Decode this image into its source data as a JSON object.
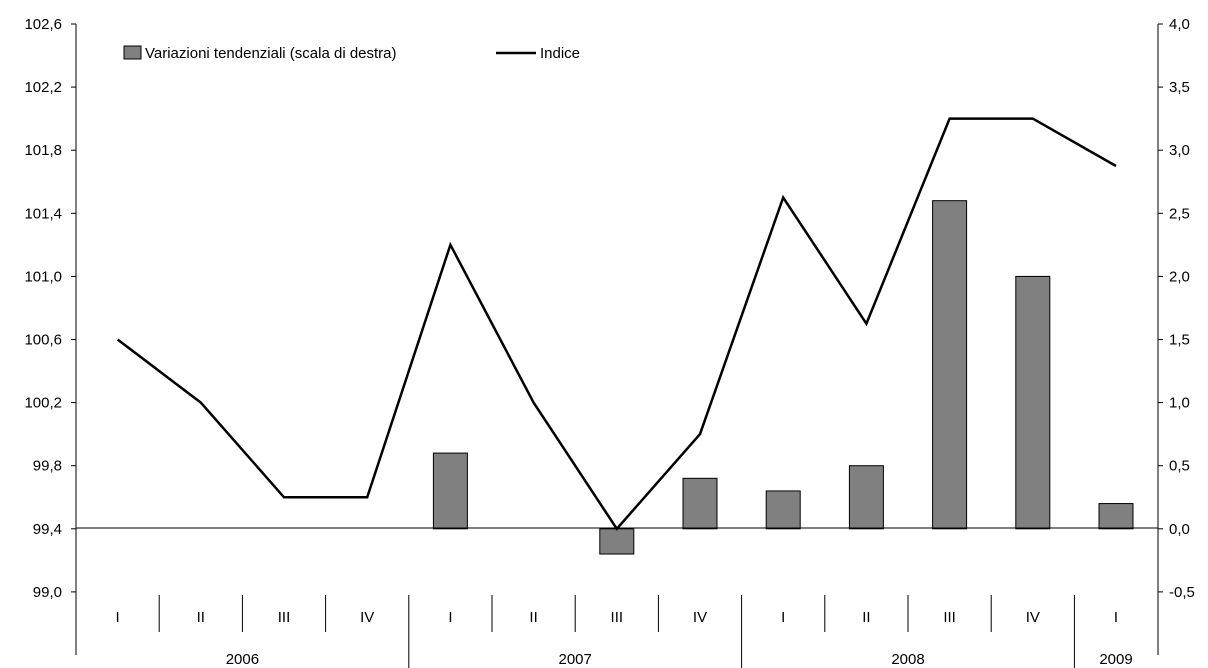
{
  "chart_data": {
    "type": "bar+line",
    "categories": [
      "I",
      "II",
      "III",
      "IV",
      "I",
      "II",
      "III",
      "IV",
      "I",
      "II",
      "III",
      "IV",
      "I"
    ],
    "years": [
      {
        "label": "2006",
        "quarters": 4
      },
      {
        "label": "2007",
        "quarters": 4
      },
      {
        "label": "2008",
        "quarters": 4
      },
      {
        "label": "2009",
        "quarters": 1
      }
    ],
    "series": [
      {
        "name": "Variazioni tendenziali (scala di destra)",
        "type": "bar",
        "axis": "right",
        "values": [
          null,
          null,
          null,
          null,
          0.6,
          null,
          -0.2,
          0.4,
          0.3,
          0.5,
          2.6,
          2.0,
          0.2
        ]
      },
      {
        "name": "Indice",
        "type": "line",
        "axis": "left",
        "values": [
          100.6,
          100.2,
          99.6,
          99.6,
          101.2,
          100.2,
          99.4,
          100.0,
          101.5,
          100.7,
          102.0,
          102.0,
          101.7
        ]
      }
    ],
    "left_axis": {
      "ylim": [
        98.6,
        102.6
      ],
      "ticks": [
        99.0,
        99.4,
        99.8,
        100.2,
        100.6,
        101.0,
        101.4,
        101.8,
        102.2,
        102.6
      ],
      "tick_labels": [
        "99,0",
        "99,4",
        "99,8",
        "100,2",
        "100,6",
        "101,0",
        "101,4",
        "101,8",
        "102,2",
        "102,6"
      ]
    },
    "right_axis": {
      "ylim": [
        -1.0,
        4.0
      ],
      "ticks": [
        -0.5,
        0.0,
        0.5,
        1.0,
        1.5,
        2.0,
        2.5,
        3.0,
        3.5,
        4.0
      ],
      "tick_labels": [
        "-0,5",
        "0,0",
        "0,5",
        "1,0",
        "1,5",
        "2,0",
        "2,5",
        "3,0",
        "3,5",
        "4,0"
      ]
    },
    "grid": false,
    "legend_position": "top-left",
    "colors": {
      "bar": "#808080",
      "line": "#000000"
    }
  }
}
